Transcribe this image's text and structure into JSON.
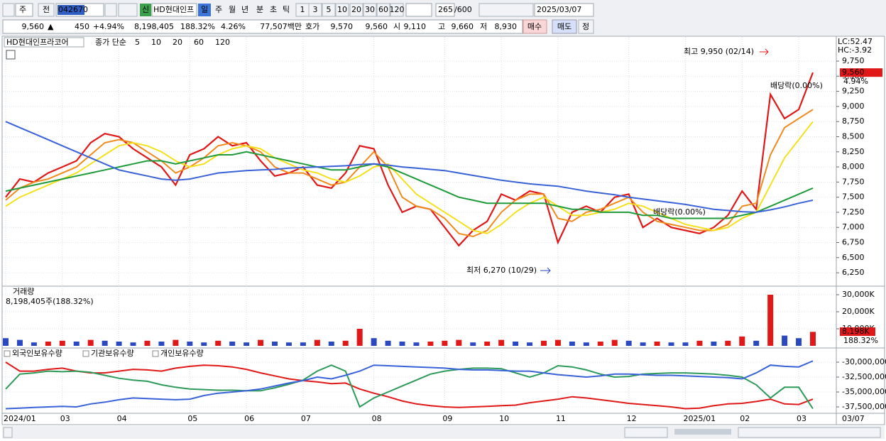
{
  "toolbar": {
    "period": "주",
    "prev": "전",
    "code": "042670",
    "badge": "신",
    "name": "HD현대인프",
    "units": [
      "일",
      "주",
      "월",
      "년",
      "분",
      "초",
      "틱"
    ],
    "intervals": [
      "1",
      "3",
      "5",
      "10",
      "20",
      "30",
      "60",
      "120"
    ],
    "count": "265",
    "max_count": "/600",
    "date": "2025/03/07"
  },
  "quote": {
    "price": "9,560",
    "arrow": "▲",
    "change": "450",
    "change_pct": "+4.94%",
    "volume": "8,198,405",
    "volume_ratio": "188.32%",
    "turnover": "4.26%",
    "amount": "77,507백만",
    "ask_label": "호가",
    "ask": "9,570",
    "bid": "9,560",
    "open_label": "시",
    "open": "9,110",
    "high_label": "고",
    "high": "9,660",
    "low_label": "저",
    "low": "8,930",
    "buy": "매수",
    "sell": "매도",
    "correct": "정"
  },
  "x_axis": {
    "categories": [
      "2024/01",
      null,
      null,
      null,
      "03",
      null,
      null,
      null,
      "04",
      null,
      null,
      null,
      null,
      "05",
      null,
      null,
      null,
      "06",
      null,
      null,
      null,
      "07",
      null,
      null,
      null,
      null,
      "08",
      null,
      null,
      null,
      null,
      "09",
      null,
      null,
      null,
      "10",
      null,
      null,
      null,
      "11",
      null,
      null,
      null,
      null,
      "12",
      null,
      null,
      null,
      "2025/01",
      null,
      null,
      null,
      "02",
      null,
      null,
      null,
      "03",
      null
    ],
    "end_label": "03/07"
  },
  "chart_data": [
    {
      "type": "line",
      "title": "HD현대인프라코어",
      "subtitle": "종가 단순",
      "series": [
        {
          "name": "5",
          "color": "#e01818",
          "values": [
            7500,
            7800,
            7750,
            7900,
            8000,
            8100,
            8400,
            8550,
            8500,
            8300,
            8150,
            8000,
            7700,
            8200,
            8300,
            8500,
            8350,
            8400,
            8100,
            7850,
            7900,
            8000,
            7700,
            7650,
            7900,
            8350,
            8300,
            7700,
            7250,
            7350,
            7300,
            7000,
            6700,
            6950,
            7100,
            7550,
            7450,
            7600,
            7550,
            6750,
            7250,
            7350,
            7250,
            7500,
            7550,
            7000,
            7150,
            7000,
            6950,
            6900,
            7000,
            7200,
            7600,
            7300,
            9200,
            8800,
            8950,
            9560
          ]
        },
        {
          "name": "10",
          "color": "#f08a1c",
          "values": [
            7450,
            7650,
            7750,
            7800,
            7900,
            8000,
            8200,
            8400,
            8450,
            8400,
            8250,
            8100,
            7900,
            8000,
            8150,
            8350,
            8400,
            8350,
            8250,
            8000,
            7900,
            7900,
            7800,
            7700,
            7750,
            8000,
            8250,
            8000,
            7500,
            7350,
            7300,
            7150,
            6900,
            6850,
            6950,
            7250,
            7450,
            7550,
            7550,
            7150,
            7100,
            7250,
            7300,
            7400,
            7500,
            7250,
            7100,
            7050,
            7000,
            6950,
            6950,
            7050,
            7350,
            7400,
            8200,
            8650,
            8800,
            8950
          ]
        },
        {
          "name": "20",
          "color": "#f4e01c",
          "values": [
            7350,
            7500,
            7600,
            7700,
            7800,
            7900,
            8050,
            8200,
            8350,
            8400,
            8350,
            8250,
            8100,
            8000,
            8050,
            8200,
            8300,
            8350,
            8300,
            8150,
            8050,
            7950,
            7900,
            7800,
            7750,
            7850,
            8000,
            8050,
            7800,
            7550,
            7400,
            7250,
            7100,
            6950,
            6900,
            7050,
            7250,
            7400,
            7500,
            7350,
            7200,
            7200,
            7250,
            7300,
            7400,
            7350,
            7250,
            7150,
            7050,
            7000,
            6950,
            7000,
            7150,
            7250,
            7700,
            8150,
            8450,
            8750
          ]
        },
        {
          "name": "60",
          "color": "#1f9a3a",
          "values": [
            7600,
            7650,
            7700,
            7750,
            7800,
            7850,
            7900,
            7950,
            8000,
            8050,
            8100,
            8100,
            8050,
            8100,
            8150,
            8200,
            8200,
            8250,
            8200,
            8150,
            8100,
            8050,
            8000,
            7950,
            7950,
            8000,
            8050,
            8000,
            7900,
            7800,
            7700,
            7600,
            7500,
            7450,
            7400,
            7400,
            7400,
            7400,
            7400,
            7350,
            7300,
            7300,
            7250,
            7250,
            7250,
            7200,
            7200,
            7150,
            7150,
            7150,
            7150,
            7150,
            7200,
            7250,
            7350,
            7450,
            7550,
            7650
          ]
        },
        {
          "name": "120",
          "color": "#3a62d8",
          "values": [
            8750,
            8650,
            8550,
            8450,
            8350,
            8250,
            8150,
            8050,
            7950,
            7900,
            7850,
            7800,
            7780,
            7800,
            7850,
            7900,
            7920,
            7940,
            7950,
            7960,
            7980,
            7990,
            8000,
            8010,
            8020,
            8040,
            8050,
            8030,
            8000,
            7980,
            7960,
            7940,
            7900,
            7860,
            7820,
            7780,
            7750,
            7720,
            7700,
            7680,
            7640,
            7600,
            7570,
            7540,
            7500,
            7470,
            7440,
            7410,
            7380,
            7340,
            7300,
            7280,
            7260,
            7250,
            7290,
            7340,
            7400,
            7450
          ]
        }
      ],
      "ylim": [
        6040,
        9985
      ],
      "yticks": [
        {
          "value": 6250,
          "label": "6,250"
        },
        {
          "value": 6500,
          "label": "6,500"
        },
        {
          "value": 6750,
          "label": "6,750"
        },
        {
          "value": 7000,
          "label": "7,000"
        },
        {
          "value": 7250,
          "label": "7,250"
        },
        {
          "value": 7500,
          "label": "7,500"
        },
        {
          "value": 7750,
          "label": "7,750"
        },
        {
          "value": 8000,
          "label": "8,000"
        },
        {
          "value": 8250,
          "label": "8,250"
        },
        {
          "value": 8500,
          "label": "8,500"
        },
        {
          "value": 8750,
          "label": "8,750"
        },
        {
          "value": 9000,
          "label": "9,000"
        },
        {
          "value": 9250,
          "label": "9,250"
        },
        {
          "value": 9500,
          "label": "9,500"
        },
        {
          "value": 9750,
          "label": "9,750"
        }
      ],
      "grid": true,
      "indicators": [
        "LC:52.47",
        "HC:-3.92"
      ],
      "current": {
        "value": 9560,
        "label": "9,560",
        "change": "4.94%"
      },
      "annotations": {
        "high": "최고 9,950 (02/14)",
        "low": "최저 6,270 (10/29)",
        "dividend": "배당락(0.00%)"
      }
    },
    {
      "type": "bar",
      "title": "거래량",
      "subtitle": "8,198,405주(188.32%)",
      "color": "#2a48c0",
      "up_color": "#e01818",
      "values": [
        4500,
        3500,
        2000,
        2500,
        3000,
        2500,
        3500,
        3000,
        2500,
        2000,
        3000,
        2500,
        3500,
        2500,
        2000,
        3000,
        2500,
        2000,
        3500,
        2500,
        2000,
        2000,
        3500,
        2500,
        3000,
        10000,
        4500,
        3000,
        2500,
        2000,
        2500,
        3000,
        3500,
        2000,
        2500,
        3500,
        2500,
        2000,
        3000,
        3500,
        2500,
        2000,
        2500,
        3500,
        3000,
        2000,
        2500,
        2000,
        2000,
        3000,
        2500,
        3000,
        5500,
        3000,
        30000,
        6000,
        4500,
        8198.405
      ],
      "ylim": [
        0,
        33333
      ],
      "yticks": [
        {
          "value": 10000,
          "label": "10,000K"
        },
        {
          "value": 20000,
          "label": "20,000K"
        },
        {
          "value": 30000,
          "label": "30,000K"
        }
      ],
      "current": {
        "label": "8,198K",
        "ratio": "188.32%"
      }
    },
    {
      "type": "line",
      "series": [
        {
          "name": "외국인보유수량",
          "color": "#e01818",
          "values": [
            -30000000,
            -31500000,
            -31500000,
            -31200000,
            -31000000,
            -31500000,
            -31800000,
            -31800000,
            -31500000,
            -31200000,
            -31300000,
            -31500000,
            -31000000,
            -30700000,
            -30500000,
            -30600000,
            -30800000,
            -31200000,
            -31800000,
            -32300000,
            -32800000,
            -33100000,
            -33300000,
            -33600000,
            -33500000,
            -34500000,
            -35200000,
            -35800000,
            -36500000,
            -37000000,
            -37300000,
            -37500000,
            -37600000,
            -37500000,
            -37400000,
            -37300000,
            -37200000,
            -36800000,
            -36500000,
            -36200000,
            -35800000,
            -36000000,
            -36300000,
            -36600000,
            -36900000,
            -37100000,
            -37300000,
            -37500000,
            -37800000,
            -37700000,
            -37300000,
            -37000000,
            -36900000,
            -36600000,
            -36200000,
            -37000000,
            -37100000,
            -36200000
          ]
        },
        {
          "name": "기관보유수량",
          "color": "#2e9a5a",
          "values": [
            -34500000,
            -32000000,
            -31800000,
            -31500000,
            -31600000,
            -31500000,
            -31700000,
            -32200000,
            -32700000,
            -33000000,
            -33200000,
            -33800000,
            -34200000,
            -34500000,
            -34600000,
            -34700000,
            -34700000,
            -34800000,
            -34800000,
            -34300000,
            -33700000,
            -33000000,
            -31500000,
            -30500000,
            -31500000,
            -37500000,
            -36000000,
            -35000000,
            -34000000,
            -33000000,
            -32000000,
            -31500000,
            -31200000,
            -31000000,
            -31000000,
            -31100000,
            -31800000,
            -32500000,
            -31800000,
            -30600000,
            -30800000,
            -31300000,
            -32000000,
            -32500000,
            -32400000,
            -32000000,
            -31900000,
            -31800000,
            -31800000,
            -31900000,
            -32000000,
            -32200000,
            -32500000,
            -33800000,
            -36000000,
            -34200000,
            -34200000,
            -37800000
          ]
        },
        {
          "name": "개인보유수량",
          "color": "#3a62d8",
          "values": [
            -37800000,
            -37700000,
            -37600000,
            -37500000,
            -37400000,
            -37500000,
            -37000000,
            -36700000,
            -36300000,
            -36000000,
            -36100000,
            -36200000,
            -36300000,
            -36200000,
            -35600000,
            -35200000,
            -35000000,
            -34800000,
            -34500000,
            -34000000,
            -33500000,
            -33100000,
            -32500000,
            -32800000,
            -32200000,
            -31500000,
            -30500000,
            -30600000,
            -30700000,
            -30800000,
            -30900000,
            -31000000,
            -31200000,
            -31300000,
            -31300000,
            -31400000,
            -31500000,
            -31500000,
            -31800000,
            -32100000,
            -32300000,
            -32500000,
            -32300000,
            -32000000,
            -32000000,
            -32100000,
            -32200000,
            -32200000,
            -32300000,
            -32400000,
            -32500000,
            -32600000,
            -32800000,
            -31800000,
            -30500000,
            -30700000,
            -30800000,
            -29800000
          ]
        }
      ],
      "ylim": [
        -38570000,
        -28100000
      ],
      "yticks": [
        {
          "value": -37500000,
          "label": "-37,500,000"
        },
        {
          "value": -35000000,
          "label": "-35,000,000"
        },
        {
          "value": -32500000,
          "label": "-32,500,000"
        },
        {
          "value": -30000000,
          "label": "-30,000,000"
        }
      ]
    }
  ]
}
